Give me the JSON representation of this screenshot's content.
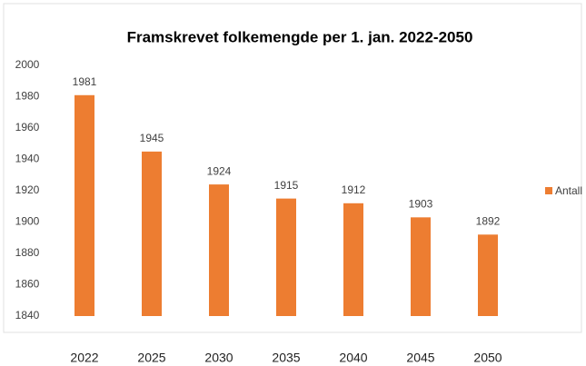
{
  "chart_data": {
    "type": "bar",
    "title": "Framskrevet folkemengde per 1. jan. 2022-2050",
    "categories": [
      "2022",
      "2025",
      "2030",
      "2035",
      "2040",
      "2045",
      "2050"
    ],
    "series": [
      {
        "name": "Antall",
        "color": "#ed7d31",
        "values": [
          1981,
          1945,
          1924,
          1915,
          1912,
          1903,
          1892
        ]
      }
    ],
    "ylim": [
      1840,
      2000
    ],
    "yticks": [
      1840,
      1860,
      1880,
      1900,
      1920,
      1940,
      1960,
      1980,
      2000
    ],
    "grid": false,
    "legend": "right",
    "data_labels": true
  }
}
